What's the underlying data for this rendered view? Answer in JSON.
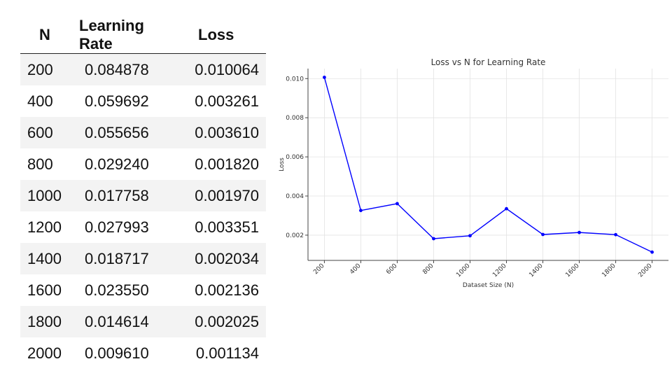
{
  "table": {
    "headers": {
      "n": "N",
      "lr": "Learning Rate",
      "loss": "Loss"
    },
    "rows": [
      {
        "n": "200",
        "lr": "0.084878",
        "loss": "0.010064"
      },
      {
        "n": "400",
        "lr": "0.059692",
        "loss": "0.003261"
      },
      {
        "n": "600",
        "lr": "0.055656",
        "loss": "0.003610"
      },
      {
        "n": "800",
        "lr": "0.029240",
        "loss": "0.001820"
      },
      {
        "n": "1000",
        "lr": "0.017758",
        "loss": "0.001970"
      },
      {
        "n": "1200",
        "lr": "0.027993",
        "loss": "0.003351"
      },
      {
        "n": "1400",
        "lr": "0.018717",
        "loss": "0.002034"
      },
      {
        "n": "1600",
        "lr": "0.023550",
        "loss": "0.002136"
      },
      {
        "n": "1800",
        "lr": "0.014614",
        "loss": "0.002025"
      },
      {
        "n": "2000",
        "lr": "0.009610",
        "loss": "0.001134"
      }
    ]
  },
  "chart_data": {
    "type": "line",
    "title": "Loss vs N for Learning Rate",
    "xlabel": "Dataset Size (N)",
    "ylabel": "Loss",
    "x": [
      200,
      400,
      600,
      800,
      1000,
      1200,
      1400,
      1600,
      1800,
      2000
    ],
    "x_tick_labels": [
      "200",
      "400",
      "600",
      "800",
      "1000",
      "1200",
      "1400",
      "1600",
      "1800",
      "2000"
    ],
    "y_ticks": [
      0.002,
      0.004,
      0.006,
      0.008,
      0.01
    ],
    "y_tick_labels": [
      "0.002",
      "0.004",
      "0.006",
      "0.008",
      "0.010"
    ],
    "series": [
      {
        "values": [
          0.010064,
          0.003261,
          0.00361,
          0.00182,
          0.00197,
          0.003351,
          0.002034,
          0.002136,
          0.002025,
          0.001134
        ]
      }
    ],
    "xlim": [
      110,
      2090
    ],
    "ylim": [
      0.00071,
      0.01051
    ],
    "grid": true,
    "line_color": "#0000ff"
  }
}
